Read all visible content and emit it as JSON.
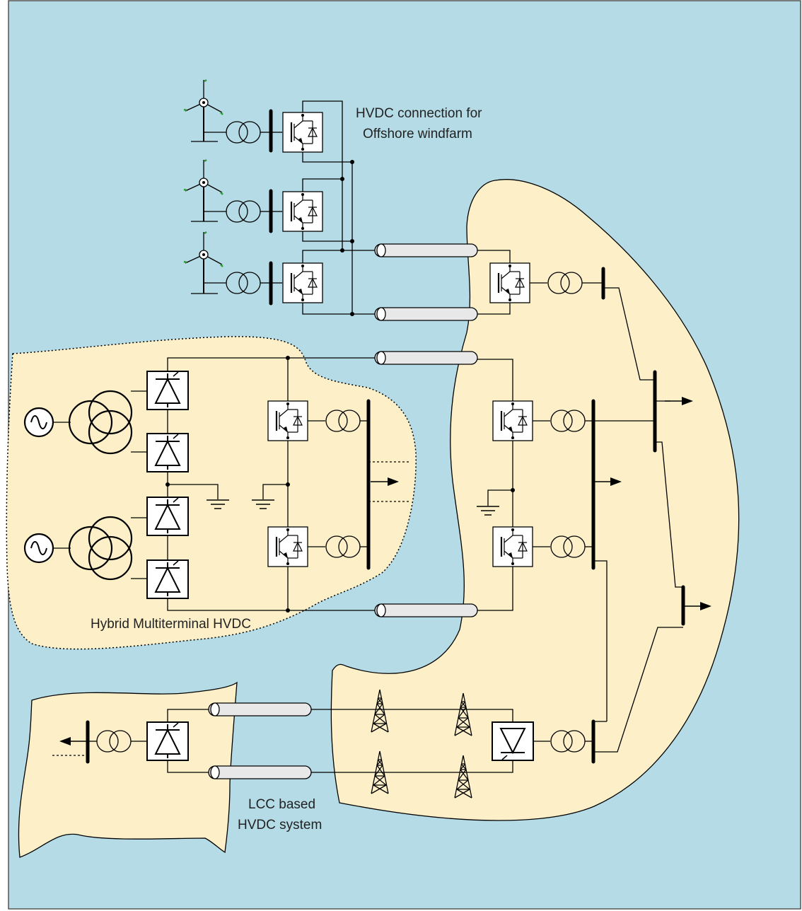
{
  "labels": {
    "offshore_line1": "HVDC connection for",
    "offshore_line2": "Offshore windfarm",
    "hybrid": "Hybrid Multiterminal HVDC",
    "lcc_line1": "LCC based",
    "lcc_line2": "HVDC system"
  },
  "colors": {
    "sea": "#b5dce6",
    "land": "#fdf0c9",
    "frame": "#555555",
    "blade_tip": "#2e9a36"
  },
  "icons": [
    "wind-turbine-icon",
    "transformer-icon",
    "vsc-converter-icon",
    "lcc-converter-icon",
    "ac-source-icon",
    "ground-icon",
    "cable-icon",
    "transmission-tower-icon",
    "load-arrow-icon"
  ]
}
